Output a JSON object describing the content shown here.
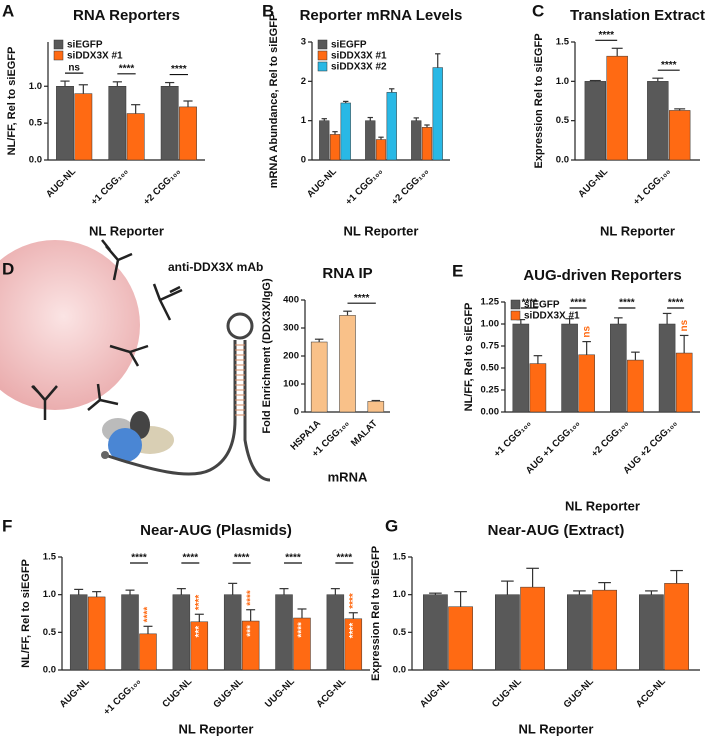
{
  "diagram": {
    "label": "anti-DDX3X mAb"
  },
  "chart_data": [
    {
      "type": "bar",
      "panel": "A",
      "title": "RNA Reporters",
      "xlabel": "NL Reporter",
      "ylabel": "NL/FF, Rel to siEGFP",
      "categories": [
        "AUG-NL",
        "+1 CGG₁₀₀",
        "+2 CGG₁₀₀"
      ],
      "series": [
        {
          "name": "siEGFP",
          "color": "#595959",
          "values": [
            1,
            1,
            1
          ],
          "errors": [
            0.07,
            0.06,
            0.05
          ]
        },
        {
          "name": "siDDX3X #1",
          "color": "#ff6a13",
          "values": [
            0.9,
            0.63,
            0.72
          ],
          "errors": [
            0.12,
            0.12,
            0.08
          ]
        }
      ],
      "significance": [
        "ns",
        "****",
        "****"
      ],
      "legend": "upper left",
      "ylim": [
        0,
        1.6
      ],
      "yticks": [
        {
          "value": 0,
          "label": "0.0"
        },
        {
          "value": 0.5,
          "label": "0.5"
        },
        {
          "value": 1,
          "label": "1.0"
        }
      ]
    },
    {
      "type": "bar",
      "panel": "B",
      "title": "Reporter mRNA Levels",
      "xlabel": "NL Reporter",
      "ylabel": "mRNA Abundance, Rel to siEGFP",
      "categories": [
        "AUG-NL",
        "+1 CGG₁₀₀",
        "+2 CGG₁₀₀"
      ],
      "series": [
        {
          "name": "siEGFP",
          "color": "#595959",
          "values": [
            1,
            1,
            1
          ],
          "errors": [
            0.05,
            0.08,
            0.07
          ]
        },
        {
          "name": "siDDX3X #1",
          "color": "#ff6a13",
          "values": [
            0.65,
            0.52,
            0.83
          ],
          "errors": [
            0.07,
            0.06,
            0.06
          ]
        },
        {
          "name": "siDDX3X #2",
          "color": "#29b8e5",
          "values": [
            1.45,
            1.72,
            2.35
          ],
          "errors": [
            0.04,
            0.09,
            0.35
          ]
        }
      ],
      "legend": "upper left",
      "ylim": [
        0,
        3
      ],
      "yticks": [
        0,
        1,
        2,
        3
      ]
    },
    {
      "type": "bar",
      "panel": "C",
      "title": "Translation Extract",
      "xlabel": "NL Reporter",
      "ylabel": "Expression Rel to siEGFP",
      "categories": [
        "AUG-NL",
        "+1 CGG₁₀₀"
      ],
      "series": [
        {
          "name": "siEGFP",
          "color": "#595959",
          "values": [
            1,
            1
          ],
          "errors": [
            0.01,
            0.04
          ]
        },
        {
          "name": "siDDX3X #1",
          "color": "#ff6a13",
          "values": [
            1.32,
            0.63
          ],
          "errors": [
            0.1,
            0.02
          ]
        }
      ],
      "significance": [
        "****",
        "****"
      ],
      "ylim": [
        0,
        1.5
      ],
      "yticks": [
        {
          "value": 0,
          "label": "0.0"
        },
        {
          "value": 0.5,
          "label": "0.5"
        },
        {
          "value": 1,
          "label": "1.0"
        },
        {
          "value": 1.5,
          "label": "1.5"
        }
      ]
    },
    {
      "type": "bar",
      "panel": "D",
      "title": "RNA IP",
      "xlabel": "mRNA",
      "ylabel": "Fold Enrichment (DDX3X/IgG)",
      "categories": [
        "HSPA1A",
        "+1 CGG₁₀₀",
        "MALAT"
      ],
      "series": [
        {
          "name": "RNA IP",
          "color": "#f9c189",
          "values": [
            250,
            345,
            38
          ],
          "errors": [
            10,
            15,
            3
          ]
        }
      ],
      "significance": [
        null,
        "****",
        null
      ],
      "ylim": [
        0,
        400
      ],
      "yticks": [
        0,
        100,
        200,
        300,
        400
      ]
    },
    {
      "type": "bar",
      "panel": "E",
      "title": "AUG-driven Reporters",
      "xlabel": "NL Reporter",
      "ylabel": "NL/FF, Rel to siEGFP",
      "categories": [
        "+1 CGG₁₀₀",
        "AUG +1 CGG₁₀₀",
        "+2 CGG₁₀₀",
        "AUG +2 CGG₁₀₀"
      ],
      "series": [
        {
          "name": "siEGFP",
          "color": "#595959",
          "values": [
            1,
            1,
            1,
            1
          ],
          "errors": [
            0.05,
            0.06,
            0.07,
            0.12
          ]
        },
        {
          "name": "siDDX3X #1",
          "color": "#ff6a13",
          "values": [
            0.55,
            0.65,
            0.59,
            0.67
          ],
          "errors": [
            0.09,
            0.15,
            0.09,
            0.2
          ]
        }
      ],
      "significance": [
        "****",
        "****",
        "****",
        "****"
      ],
      "significance_2": [
        null,
        "ns",
        null,
        "ns"
      ],
      "legend": "upper left",
      "ylim": [
        0,
        1.25
      ],
      "yticks": [
        {
          "value": 0,
          "label": "0.00"
        },
        {
          "value": 0.25,
          "label": "0.25"
        },
        {
          "value": 0.5,
          "label": "0.50"
        },
        {
          "value": 0.75,
          "label": "0.75"
        },
        {
          "value": 1,
          "label": "1.00"
        },
        {
          "value": 1.25,
          "label": "1.25"
        }
      ]
    },
    {
      "type": "bar",
      "panel": "F",
      "title": "Near-AUG (Plasmids)",
      "xlabel": "NL Reporter",
      "ylabel": "NL/FF, Rel to siEGFP",
      "categories": [
        "AUG-NL",
        "+1 CGG₁₀₀",
        "CUG-NL",
        "GUG-NL",
        "UUG-NL",
        "ACG-NL"
      ],
      "series": [
        {
          "name": "siEGFP",
          "color": "#595959",
          "values": [
            1,
            1,
            1,
            1,
            1,
            1
          ],
          "errors": [
            0.07,
            0.06,
            0.08,
            0.15,
            0.08,
            0.08
          ]
        },
        {
          "name": "siDDX3X #1",
          "color": "#ff6a13",
          "values": [
            0.97,
            0.48,
            0.64,
            0.65,
            0.69,
            0.68
          ],
          "errors": [
            0.07,
            0.1,
            0.1,
            0.15,
            0.12,
            0.08
          ]
        }
      ],
      "significance": [
        null,
        "****",
        "****",
        "****",
        "****",
        "****"
      ],
      "significance_2": [
        null,
        "****",
        "****",
        "****",
        null,
        "****"
      ],
      "significance_inside": [
        null,
        null,
        "***",
        "***",
        "****",
        "****"
      ],
      "ylim": [
        0,
        1.5
      ],
      "yticks": [
        {
          "value": 0,
          "label": "0.0"
        },
        {
          "value": 0.5,
          "label": "0.5"
        },
        {
          "value": 1,
          "label": "1.0"
        },
        {
          "value": 1.5,
          "label": "1.5"
        }
      ]
    },
    {
      "type": "bar",
      "panel": "G",
      "title": "Near-AUG (Extract)",
      "xlabel": "NL Reporter",
      "ylabel": "Expression Rel to siEGFP",
      "categories": [
        "AUG-NL",
        "CUG-NL",
        "GUG-NL",
        "ACG-NL"
      ],
      "series": [
        {
          "name": "siEGFP",
          "color": "#595959",
          "values": [
            1,
            1,
            1,
            1
          ],
          "errors": [
            0.02,
            0.18,
            0.05,
            0.05
          ]
        },
        {
          "name": "siDDX3X #1",
          "color": "#ff6a13",
          "values": [
            0.84,
            1.1,
            1.06,
            1.15
          ],
          "errors": [
            0.2,
            0.25,
            0.1,
            0.17
          ]
        }
      ],
      "ylim": [
        0,
        1.5
      ],
      "yticks": [
        {
          "value": 0,
          "label": "0.0"
        },
        {
          "value": 0.5,
          "label": "0.5"
        },
        {
          "value": 1,
          "label": "1.0"
        },
        {
          "value": 1.5,
          "label": "1.5"
        }
      ]
    }
  ]
}
